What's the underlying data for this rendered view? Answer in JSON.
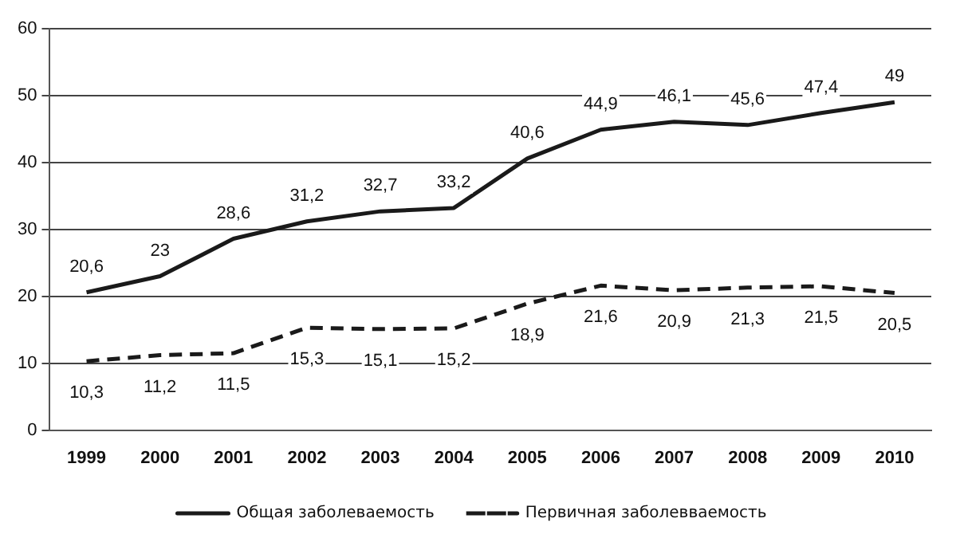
{
  "chart_data": {
    "type": "line",
    "categories": [
      "1999",
      "2000",
      "2001",
      "2002",
      "2003",
      "2004",
      "2005",
      "2006",
      "2007",
      "2008",
      "2009",
      "2010"
    ],
    "series": [
      {
        "name": "Общая заболеваемость",
        "color": "#1a1a1a",
        "line_style": "solid",
        "values": [
          20.6,
          23,
          28.6,
          31.2,
          32.7,
          33.2,
          40.6,
          44.9,
          46.1,
          45.6,
          47.4,
          49
        ],
        "value_labels": [
          "20,6",
          "23",
          "28,6",
          "31,2",
          "32,7",
          "33,2",
          "40,6",
          "44,9",
          "46,1",
          "45,6",
          "47,4",
          "49"
        ]
      },
      {
        "name": "Первичная заболевваемость",
        "color": "#1a1a1a",
        "line_style": "dashed",
        "values": [
          10.3,
          11.2,
          11.5,
          15.3,
          15.1,
          15.2,
          18.9,
          21.6,
          20.9,
          21.3,
          21.5,
          20.5
        ],
        "value_labels": [
          "10,3",
          "11,2",
          "11,5",
          "15,3",
          "15,1",
          "15,2",
          "18,9",
          "21,6",
          "20,9",
          "21,3",
          "21,5",
          "20,5"
        ]
      }
    ],
    "ylim": [
      0,
      60
    ],
    "yticks": [
      0,
      10,
      20,
      30,
      40,
      50,
      60
    ],
    "grid": "y",
    "legend": "bottom",
    "marker": "none"
  }
}
